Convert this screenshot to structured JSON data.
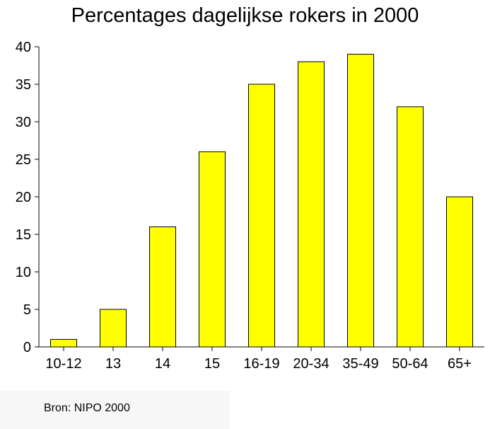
{
  "chart_data": {
    "type": "bar",
    "title": "Percentages dagelijkse rokers in 2000",
    "xlabel": "",
    "ylabel": "",
    "categories": [
      "10-12",
      "13",
      "14",
      "15",
      "16-19",
      "20-34",
      "35-49",
      "50-64",
      "65+"
    ],
    "values": [
      1,
      5,
      16,
      26,
      35,
      38,
      39,
      32,
      20
    ],
    "ylim": [
      0,
      40
    ],
    "yticks": [
      0,
      5,
      10,
      15,
      20,
      25,
      30,
      35,
      40
    ],
    "grid": false,
    "legend": "none",
    "bar_color": "#ffff00",
    "bar_edge_color": "#000000"
  },
  "footer": {
    "source": "Bron: NIPO 2000"
  }
}
